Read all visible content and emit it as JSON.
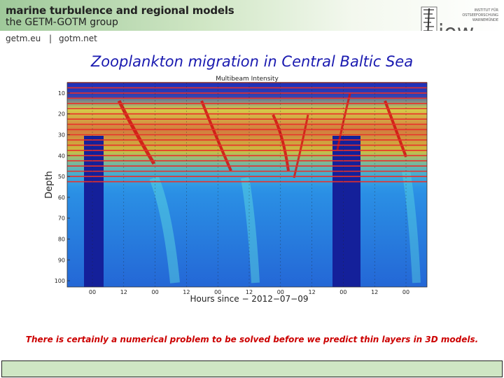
{
  "header": {
    "brand_line1": "marine turbulence and regional models",
    "brand_line2": "the GETM-GOTM group",
    "link1": "getm.eu",
    "separator": "|",
    "link2": "gotm.net",
    "logo_text": "iow",
    "logo_line1": "INSTITUT FÜR",
    "logo_line2": "OSTSEEFORSCHUNG",
    "logo_line3": "WARNEMÜNDE"
  },
  "slide": {
    "title": "Zooplankton migration in Central Baltic Sea",
    "caption": "There is certainly a numerical problem to be solved before we predict thin layers in 3D models."
  },
  "colors": {
    "title": "#1a1ab0",
    "caption": "#cc0000",
    "header_green": "#9fc99a",
    "overlay_lines": "#e8302a"
  },
  "chart_data": {
    "type": "heatmap",
    "title": "Multibeam Intensity",
    "xlabel": "Hours since − 2012−07−09",
    "ylabel": "Depth",
    "x_ticks": [
      "00",
      "12",
      "00",
      "12",
      "00",
      "12",
      "00",
      "12",
      "00",
      "12",
      "00"
    ],
    "y_ticks": [
      "10",
      "20",
      "30",
      "40",
      "50",
      "60",
      "70",
      "80",
      "90",
      "100"
    ],
    "ylim": [
      5,
      103
    ],
    "colormap": "jet",
    "overlay": {
      "type": "horizontal_lines",
      "color": "red",
      "depths": [
        5,
        7.5,
        10,
        12.5,
        15,
        17.5,
        20,
        22.5,
        25,
        27.5,
        30,
        32.5,
        35,
        37.5,
        40,
        42.5,
        45,
        47.5,
        50,
        52.5
      ]
    }
  }
}
